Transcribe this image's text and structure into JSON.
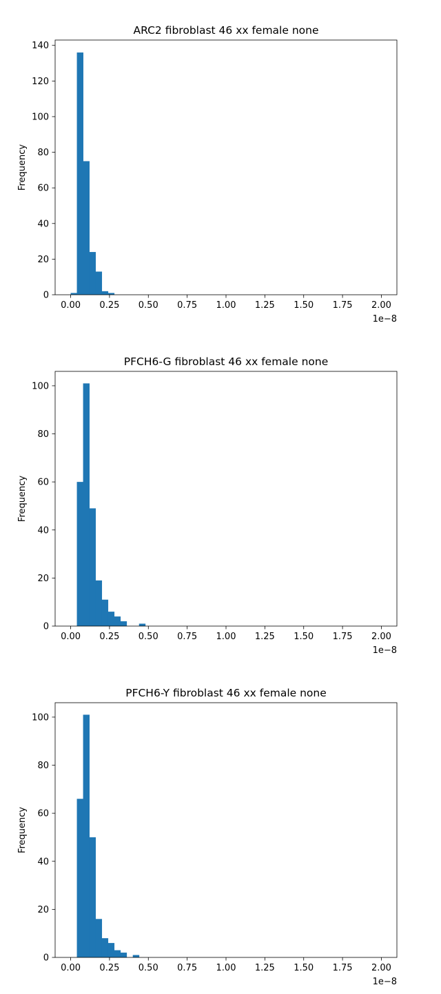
{
  "chart_data": [
    {
      "type": "bar",
      "title": "ARC2 fibroblast 46 xx female none",
      "xlabel": "",
      "ylabel": "Frequency",
      "x_offset_text": "1e−8",
      "xlim": [
        -0.1,
        2.1
      ],
      "ylim": [
        0,
        143
      ],
      "bar_color": "#1f77b4",
      "bin_edges": [
        0.0,
        0.04,
        0.08,
        0.12,
        0.16,
        0.2,
        0.24,
        0.28,
        0.32,
        0.36,
        0.4,
        0.44,
        0.48,
        0.52,
        0.56,
        0.6,
        0.64,
        0.68,
        0.72,
        0.76,
        0.8,
        0.84,
        0.88,
        0.92,
        0.96,
        1.0,
        1.04,
        1.08,
        1.12,
        1.16,
        1.2,
        1.24,
        1.28,
        1.32,
        1.36,
        1.4,
        1.44,
        1.48,
        1.52,
        1.56,
        1.6,
        1.64,
        1.68,
        1.72,
        1.76,
        1.8,
        1.84,
        1.88,
        1.92,
        1.96,
        2.0
      ],
      "values": [
        1,
        136,
        75,
        24,
        13,
        2,
        1,
        0,
        0,
        0,
        0,
        0,
        0,
        0,
        0,
        0,
        0,
        0,
        0,
        0,
        0,
        0,
        0,
        0,
        0,
        0,
        0,
        0,
        0,
        0,
        0,
        0,
        0,
        0,
        0,
        0,
        0,
        0,
        0,
        0,
        0,
        0,
        0,
        0,
        0,
        0,
        0,
        0,
        0,
        0
      ],
      "xticks": [
        0.0,
        0.25,
        0.5,
        0.75,
        1.0,
        1.25,
        1.5,
        1.75,
        2.0
      ],
      "xtick_labels": [
        "0.00",
        "0.25",
        "0.50",
        "0.75",
        "1.00",
        "1.25",
        "1.50",
        "1.75",
        "2.00"
      ],
      "yticks": [
        0,
        20,
        40,
        60,
        80,
        100,
        120,
        140
      ],
      "ytick_labels": [
        "0",
        "20",
        "40",
        "60",
        "80",
        "100",
        "120",
        "140"
      ]
    },
    {
      "type": "bar",
      "title": "PFCH6-G fibroblast 46 xx female none",
      "xlabel": "",
      "ylabel": "Frequency",
      "x_offset_text": "1e−8",
      "xlim": [
        -0.1,
        2.1
      ],
      "ylim": [
        0,
        106
      ],
      "bar_color": "#1f77b4",
      "bin_edges": [
        0.0,
        0.04,
        0.08,
        0.12,
        0.16,
        0.2,
        0.24,
        0.28,
        0.32,
        0.36,
        0.4,
        0.44,
        0.48,
        0.52,
        0.56,
        0.6,
        0.64,
        0.68,
        0.72,
        0.76,
        0.8,
        0.84,
        0.88,
        0.92,
        0.96,
        1.0,
        1.04,
        1.08,
        1.12,
        1.16,
        1.2,
        1.24,
        1.28,
        1.32,
        1.36,
        1.4,
        1.44,
        1.48,
        1.52,
        1.56,
        1.6,
        1.64,
        1.68,
        1.72,
        1.76,
        1.8,
        1.84,
        1.88,
        1.92,
        1.96,
        2.0
      ],
      "values": [
        0,
        60,
        101,
        49,
        19,
        11,
        6,
        4,
        2,
        0,
        0,
        1,
        0,
        0,
        0,
        0,
        0,
        0,
        0,
        0,
        0,
        0,
        0,
        0,
        0,
        0,
        0,
        0,
        0,
        0,
        0,
        0,
        0,
        0,
        0,
        0,
        0,
        0,
        0,
        0,
        0,
        0,
        0,
        0,
        0,
        0,
        0,
        0,
        0,
        0
      ],
      "xticks": [
        0.0,
        0.25,
        0.5,
        0.75,
        1.0,
        1.25,
        1.5,
        1.75,
        2.0
      ],
      "xtick_labels": [
        "0.00",
        "0.25",
        "0.50",
        "0.75",
        "1.00",
        "1.25",
        "1.50",
        "1.75",
        "2.00"
      ],
      "yticks": [
        0,
        20,
        40,
        60,
        80,
        100
      ],
      "ytick_labels": [
        "0",
        "20",
        "40",
        "60",
        "80",
        "100"
      ]
    },
    {
      "type": "bar",
      "title": "PFCH6-Y fibroblast 46 xx female none",
      "xlabel": "",
      "ylabel": "Frequency",
      "x_offset_text": "1e−8",
      "xlim": [
        -0.1,
        2.1
      ],
      "ylim": [
        0,
        106
      ],
      "bar_color": "#1f77b4",
      "bin_edges": [
        0.0,
        0.04,
        0.08,
        0.12,
        0.16,
        0.2,
        0.24,
        0.28,
        0.32,
        0.36,
        0.4,
        0.44,
        0.48,
        0.52,
        0.56,
        0.6,
        0.64,
        0.68,
        0.72,
        0.76,
        0.8,
        0.84,
        0.88,
        0.92,
        0.96,
        1.0,
        1.04,
        1.08,
        1.12,
        1.16,
        1.2,
        1.24,
        1.28,
        1.32,
        1.36,
        1.4,
        1.44,
        1.48,
        1.52,
        1.56,
        1.6,
        1.64,
        1.68,
        1.72,
        1.76,
        1.8,
        1.84,
        1.88,
        1.92,
        1.96,
        2.0
      ],
      "values": [
        0,
        66,
        101,
        50,
        16,
        8,
        6,
        3,
        2,
        0,
        1,
        0,
        0,
        0,
        0,
        0,
        0,
        0,
        0,
        0,
        0,
        0,
        0,
        0,
        0,
        0,
        0,
        0,
        0,
        0,
        0,
        0,
        0,
        0,
        0,
        0,
        0,
        0,
        0,
        0,
        0,
        0,
        0,
        0,
        0,
        0,
        0,
        0,
        0,
        0
      ],
      "xticks": [
        0.0,
        0.25,
        0.5,
        0.75,
        1.0,
        1.25,
        1.5,
        1.75,
        2.0
      ],
      "xtick_labels": [
        "0.00",
        "0.25",
        "0.50",
        "0.75",
        "1.00",
        "1.25",
        "1.50",
        "1.75",
        "2.00"
      ],
      "yticks": [
        0,
        20,
        40,
        60,
        80,
        100
      ],
      "ytick_labels": [
        "0",
        "20",
        "40",
        "60",
        "80",
        "100"
      ]
    }
  ]
}
